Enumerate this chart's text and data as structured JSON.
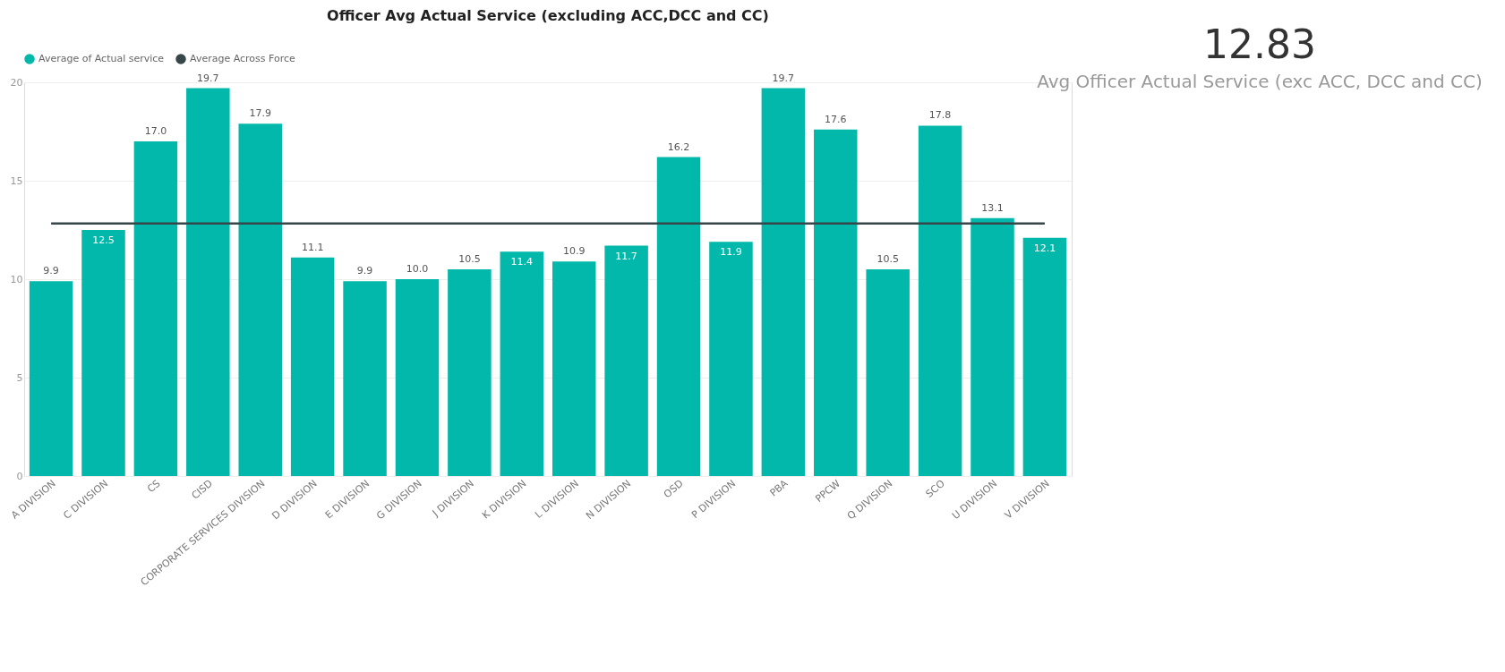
{
  "chart_data": {
    "type": "bar",
    "title": "Officer Avg Actual Service (excluding ACC,DCC and CC)",
    "categories": [
      "A DIVISION",
      "C DIVISION",
      "CS",
      "CISD",
      "CORPORATE SERVICES DIVISION",
      "D DIVISION",
      "E DIVISION",
      "G DIVISION",
      "J DIVISION",
      "K DIVISION",
      "L DIVISION",
      "N DIVISION",
      "OSD",
      "P DIVISION",
      "PBA",
      "PPCW",
      "Q DIVISION",
      "SCO",
      "U DIVISION",
      "V DIVISION"
    ],
    "series": [
      {
        "name": "Average of Actual service",
        "color": "#01b8aa",
        "values": [
          9.9,
          12.5,
          17.0,
          19.7,
          17.9,
          11.1,
          9.9,
          10.0,
          10.5,
          11.4,
          10.9,
          11.7,
          16.2,
          11.9,
          19.7,
          17.6,
          10.5,
          17.8,
          13.1,
          12.1
        ],
        "value_labels": [
          "9.9",
          "12.5",
          "17.0",
          "19.7",
          "17.9",
          "11.1",
          "9.9",
          "10.0",
          "10.5",
          "11.4",
          "10.9",
          "11.7",
          "16.2",
          "11.9",
          "19.7",
          "17.6",
          "10.5",
          "17.8",
          "13.1",
          "12.1"
        ]
      },
      {
        "name": "Average Across Force",
        "type": "line",
        "color": "#374649",
        "values": [
          12.83,
          12.83,
          12.83,
          12.83,
          12.83,
          12.83,
          12.83,
          12.83,
          12.83,
          12.83,
          12.83,
          12.83,
          12.83,
          12.83,
          12.83,
          12.83,
          12.83,
          12.83,
          12.83,
          12.83
        ]
      }
    ],
    "ylim": [
      0,
      20
    ],
    "yticks": [
      0,
      5,
      10,
      15,
      20
    ],
    "grid": "y",
    "legend": "top left",
    "annotations": [
      "12.83",
      "Avg Officer Actual Service (exc ACC, DCC and CC)"
    ]
  }
}
